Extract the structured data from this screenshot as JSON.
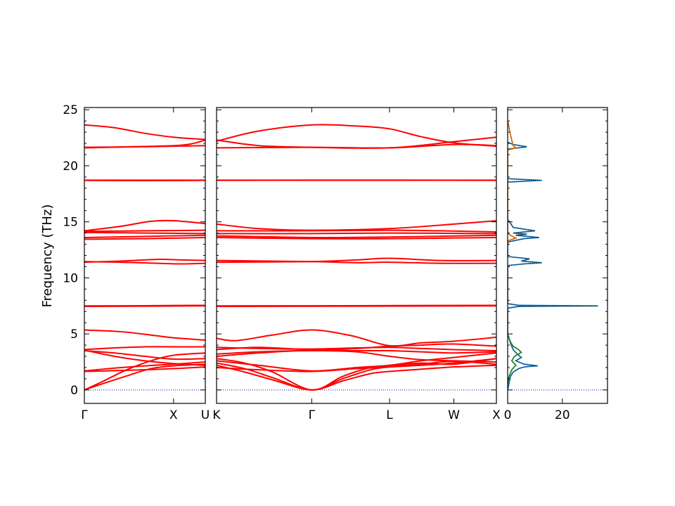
{
  "chart_data": [
    {
      "type": "line",
      "name": "band-panel-gamma-x-u",
      "ylabel": "Frequency (THz)",
      "ylim": [
        -1.2,
        25.2
      ],
      "yticks": [
        0,
        5,
        10,
        15,
        20,
        25
      ],
      "xlim": [
        0,
        1
      ],
      "xticks": [
        {
          "pos": 0,
          "label": "Γ"
        },
        {
          "pos": 0.737,
          "label": "X"
        },
        {
          "pos": 1,
          "label": "U"
        }
      ],
      "bands": [
        {
          "x": [
            0,
            0.15,
            0.35,
            0.55,
            0.74,
            1
          ],
          "y": [
            0,
            0.55,
            1.25,
            1.9,
            2.15,
            2.3
          ]
        },
        {
          "x": [
            0,
            0.15,
            0.35,
            0.55,
            0.74,
            1
          ],
          "y": [
            0,
            0.75,
            1.8,
            2.6,
            3.1,
            3.3
          ]
        },
        {
          "x": [
            0,
            0.25,
            0.5,
            0.74,
            1
          ],
          "y": [
            1.65,
            1.72,
            1.8,
            1.9,
            2.05
          ]
        },
        {
          "x": [
            0,
            0.25,
            0.5,
            0.74,
            1
          ],
          "y": [
            1.7,
            1.95,
            2.15,
            2.3,
            2.5
          ]
        },
        {
          "x": [
            0,
            0.25,
            0.5,
            0.74,
            1
          ],
          "y": [
            3.5,
            3.3,
            3.0,
            2.75,
            2.8
          ]
        },
        {
          "x": [
            0,
            0.25,
            0.5,
            0.74,
            1
          ],
          "y": [
            3.55,
            3.0,
            2.6,
            2.35,
            2.2
          ]
        },
        {
          "x": [
            0,
            0.25,
            0.5,
            0.74,
            1
          ],
          "y": [
            3.6,
            3.75,
            3.85,
            3.85,
            3.85
          ]
        },
        {
          "x": [
            0,
            0.3,
            0.55,
            0.74,
            1
          ],
          "y": [
            5.35,
            5.2,
            4.9,
            4.65,
            4.45
          ]
        },
        {
          "x": [
            0,
            0.5,
            1
          ],
          "y": [
            7.45,
            7.48,
            7.5
          ]
        },
        {
          "x": [
            0,
            0.5,
            1
          ],
          "y": [
            7.5,
            7.52,
            7.55
          ]
        },
        {
          "x": [
            0,
            0.3,
            0.6,
            0.8,
            1
          ],
          "y": [
            11.4,
            11.5,
            11.65,
            11.6,
            11.55
          ]
        },
        {
          "x": [
            0,
            0.3,
            0.6,
            0.8,
            1
          ],
          "y": [
            11.45,
            11.4,
            11.3,
            11.25,
            11.3
          ]
        },
        {
          "x": [
            0,
            0.5,
            1
          ],
          "y": [
            13.45,
            13.5,
            13.6
          ]
        },
        {
          "x": [
            0,
            0.5,
            1
          ],
          "y": [
            13.6,
            13.7,
            13.8
          ]
        },
        {
          "x": [
            0,
            0.5,
            1
          ],
          "y": [
            14.05,
            14.0,
            13.95
          ]
        },
        {
          "x": [
            0,
            0.5,
            1
          ],
          "y": [
            14.15,
            14.2,
            14.25
          ]
        },
        {
          "x": [
            0,
            0.3,
            0.55,
            0.74,
            1
          ],
          "y": [
            14.2,
            14.6,
            15.05,
            15.1,
            14.85
          ]
        },
        {
          "x": [
            0,
            0.5,
            1
          ],
          "y": [
            18.7,
            18.68,
            18.7
          ]
        },
        {
          "x": [
            0,
            0.5,
            1
          ],
          "y": [
            18.72,
            18.72,
            18.72
          ]
        },
        {
          "x": [
            0,
            0.4,
            0.74,
            0.88,
            1
          ],
          "y": [
            21.6,
            21.7,
            21.8,
            21.95,
            22.3
          ]
        },
        {
          "x": [
            0,
            0.5,
            0.74,
            1
          ],
          "y": [
            21.65,
            21.7,
            21.75,
            21.8
          ]
        },
        {
          "x": [
            0,
            0.25,
            0.5,
            0.74,
            1
          ],
          "y": [
            23.65,
            23.4,
            22.9,
            22.55,
            22.35
          ]
        }
      ]
    },
    {
      "type": "line",
      "name": "band-panel-k-gamma-l-w-x",
      "ylim": [
        -1.2,
        25.2
      ],
      "xlim": [
        0,
        1
      ],
      "xticks": [
        {
          "pos": 0,
          "label": "K"
        },
        {
          "pos": 0.34,
          "label": "Γ"
        },
        {
          "pos": 0.618,
          "label": "L"
        },
        {
          "pos": 0.848,
          "label": "W"
        },
        {
          "pos": 1,
          "label": "X"
        }
      ],
      "bands": [
        {
          "x": [
            0,
            0.1,
            0.2,
            0.34,
            0.45,
            0.55,
            0.618,
            0.73,
            0.848,
            1
          ],
          "y": [
            2.2,
            1.6,
            0.9,
            0,
            0.8,
            1.45,
            1.65,
            1.85,
            2.05,
            2.2
          ]
        },
        {
          "x": [
            0,
            0.1,
            0.2,
            0.34,
            0.45,
            0.55,
            0.618,
            0.73,
            0.848,
            1
          ],
          "y": [
            2.4,
            1.9,
            1.1,
            0,
            1.0,
            1.8,
            2.05,
            2.3,
            2.55,
            2.3
          ]
        },
        {
          "x": [
            0,
            0.1,
            0.2,
            0.34,
            0.45,
            0.55,
            0.618,
            0.73,
            0.848,
            1
          ],
          "y": [
            2.8,
            2.4,
            1.6,
            0,
            1.2,
            2.0,
            2.15,
            2.4,
            2.3,
            2.8
          ]
        },
        {
          "x": [
            0,
            0.15,
            0.34,
            0.5,
            0.618,
            0.73,
            0.848,
            1
          ],
          "y": [
            2.0,
            1.8,
            1.65,
            1.9,
            2.05,
            2.2,
            2.4,
            2.8
          ]
        },
        {
          "x": [
            0,
            0.15,
            0.34,
            0.5,
            0.618,
            0.73,
            0.848,
            1
          ],
          "y": [
            2.6,
            2.2,
            1.7,
            2.0,
            2.2,
            2.6,
            2.9,
            3.3
          ]
        },
        {
          "x": [
            0,
            0.15,
            0.34,
            0.5,
            0.618,
            0.73,
            0.848,
            1
          ],
          "y": [
            3.2,
            3.4,
            3.5,
            3.4,
            3.0,
            2.7,
            2.6,
            2.5
          ]
        },
        {
          "x": [
            0,
            0.15,
            0.34,
            0.5,
            0.618,
            0.73,
            0.848,
            1
          ],
          "y": [
            3.0,
            3.3,
            3.55,
            3.5,
            3.5,
            3.4,
            3.3,
            3.4
          ]
        },
        {
          "x": [
            0,
            0.15,
            0.34,
            0.5,
            0.618,
            0.73,
            0.848,
            1
          ],
          "y": [
            3.6,
            3.8,
            3.6,
            3.7,
            3.9,
            4.0,
            4.1,
            3.9
          ]
        },
        {
          "x": [
            0,
            0.15,
            0.34,
            0.5,
            0.618,
            0.73,
            0.848,
            1
          ],
          "y": [
            3.8,
            3.7,
            3.65,
            3.75,
            3.8,
            3.7,
            3.6,
            3.5
          ]
        },
        {
          "x": [
            0,
            0.07,
            0.2,
            0.34,
            0.48,
            0.618,
            0.73,
            0.848,
            1
          ],
          "y": [
            4.6,
            4.4,
            4.9,
            5.35,
            4.85,
            3.95,
            4.2,
            4.35,
            4.7
          ]
        },
        {
          "x": [
            0,
            0.5,
            1
          ],
          "y": [
            7.45,
            7.48,
            7.5
          ]
        },
        {
          "x": [
            0,
            0.5,
            1
          ],
          "y": [
            7.5,
            7.52,
            7.55
          ]
        },
        {
          "x": [
            0,
            0.34,
            0.5,
            0.618,
            0.8,
            1
          ],
          "y": [
            11.4,
            11.45,
            11.6,
            11.75,
            11.55,
            11.55
          ]
        },
        {
          "x": [
            0,
            0.34,
            0.5,
            0.618,
            0.8,
            1
          ],
          "y": [
            11.55,
            11.45,
            11.35,
            11.4,
            11.3,
            11.3
          ]
        },
        {
          "x": [
            0,
            0.34,
            0.618,
            1
          ],
          "y": [
            13.6,
            13.5,
            13.5,
            13.6
          ]
        },
        {
          "x": [
            0,
            0.34,
            0.618,
            1
          ],
          "y": [
            13.75,
            13.6,
            13.65,
            13.8
          ]
        },
        {
          "x": [
            0,
            0.34,
            0.618,
            1
          ],
          "y": [
            13.95,
            13.95,
            14.0,
            13.95
          ]
        },
        {
          "x": [
            0,
            0.34,
            0.618,
            0.8,
            1
          ],
          "y": [
            14.2,
            14.2,
            14.25,
            14.2,
            14.1
          ]
        },
        {
          "x": [
            0,
            0.15,
            0.34,
            0.618,
            0.848,
            1
          ],
          "y": [
            14.8,
            14.4,
            14.25,
            14.4,
            14.8,
            15.1
          ]
        },
        {
          "x": [
            0,
            0.5,
            1
          ],
          "y": [
            18.7,
            18.72,
            18.7
          ]
        },
        {
          "x": [
            0,
            0.5,
            1
          ],
          "y": [
            18.72,
            18.72,
            18.72
          ]
        },
        {
          "x": [
            0,
            0.15,
            0.34,
            0.618,
            0.848,
            1
          ],
          "y": [
            22.3,
            21.8,
            21.65,
            21.6,
            22.15,
            22.55
          ]
        },
        {
          "x": [
            0,
            0.34,
            0.618,
            0.848,
            1
          ],
          "y": [
            21.6,
            21.65,
            21.6,
            21.9,
            21.8
          ]
        },
        {
          "x": [
            0,
            0.15,
            0.34,
            0.5,
            0.618,
            0.73,
            0.848,
            1
          ],
          "y": [
            22.2,
            23.1,
            23.65,
            23.55,
            23.3,
            22.6,
            22.05,
            21.75
          ]
        }
      ]
    },
    {
      "type": "line",
      "name": "dos-panel",
      "ylim": [
        -1.2,
        25.2
      ],
      "xlim": [
        0,
        36.5
      ],
      "xticks": [
        {
          "pos": 0,
          "label": "0"
        },
        {
          "pos": 20,
          "label": "20"
        }
      ],
      "series": [
        {
          "color": "#1f77b4",
          "points": [
            [
              0,
              0
            ],
            [
              0.5,
              0.6
            ],
            [
              1,
              1.2
            ],
            [
              2,
              1.6
            ],
            [
              4,
              1.9
            ],
            [
              6,
              2.05
            ],
            [
              8,
              2.1
            ],
            [
              11,
              2.15
            ],
            [
              6,
              2.3
            ],
            [
              3,
              2.6
            ],
            [
              5,
              2.9
            ],
            [
              3.5,
              3.2
            ],
            [
              2,
              3.6
            ],
            [
              1,
              4.2
            ],
            [
              0,
              5
            ],
            [
              0,
              7.3
            ],
            [
              4,
              7.45
            ],
            [
              33,
              7.5
            ],
            [
              4,
              7.55
            ],
            [
              0,
              7.7
            ],
            [
              0,
              11.1
            ],
            [
              6,
              11.25
            ],
            [
              12.5,
              11.35
            ],
            [
              5,
              11.5
            ],
            [
              8,
              11.7
            ],
            [
              0,
              11.9
            ],
            [
              0,
              13.2
            ],
            [
              6,
              13.5
            ],
            [
              11.5,
              13.6
            ],
            [
              3,
              13.8
            ],
            [
              7,
              13.9
            ],
            [
              2,
              14.0
            ],
            [
              10,
              14.2
            ],
            [
              2,
              14.5
            ],
            [
              1,
              14.9
            ],
            [
              0,
              15.2
            ],
            [
              0,
              18.55
            ],
            [
              12.5,
              18.7
            ],
            [
              0,
              18.85
            ],
            [
              0,
              21.5
            ],
            [
              4,
              21.6
            ],
            [
              7,
              21.7
            ],
            [
              2,
              21.9
            ],
            [
              0,
              22.1
            ]
          ]
        },
        {
          "color": "#ff7f0e",
          "points": [
            [
              0,
              13.3
            ],
            [
              3,
              13.55
            ],
            [
              1,
              13.8
            ],
            [
              0,
              14.0
            ],
            [
              0,
              21.4
            ],
            [
              3,
              21.6
            ],
            [
              2,
              21.8
            ],
            [
              1.5,
              22.3
            ],
            [
              1,
              22.8
            ],
            [
              0.6,
              23.3
            ],
            [
              0.3,
              23.7
            ],
            [
              0,
              24
            ]
          ]
        },
        {
          "color": "#2ca02c",
          "points": [
            [
              0,
              0.5
            ],
            [
              0.5,
              1.2
            ],
            [
              1.5,
              1.8
            ],
            [
              3,
              2.2
            ],
            [
              1.5,
              2.6
            ],
            [
              2.5,
              3.0
            ],
            [
              5,
              3.35
            ],
            [
              4,
              3.6
            ],
            [
              2,
              3.9
            ],
            [
              1,
              4.3
            ],
            [
              0,
              5
            ]
          ]
        }
      ]
    }
  ]
}
